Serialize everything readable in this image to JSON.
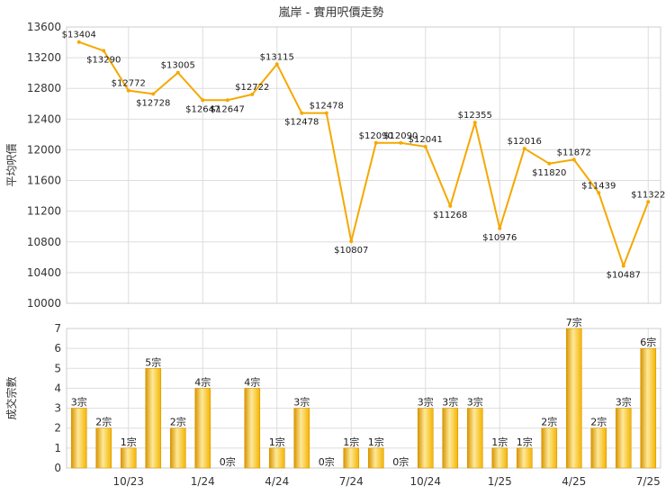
{
  "chart_data": [
    {
      "type": "line",
      "title": "嵐岸 - 實用呎價走勢",
      "ylabel": "平均呎價",
      "ylim": [
        10000,
        13600
      ],
      "yticks": [
        10000,
        10400,
        10800,
        11200,
        11600,
        12000,
        12400,
        12800,
        13200,
        13600
      ],
      "grid": true,
      "color": "#f5a800",
      "series": [
        {
          "values": [
            13404,
            13290,
            12772,
            12728,
            13005,
            12647,
            12647,
            12722,
            13115,
            12478,
            12478,
            10807,
            12090,
            12090,
            12041,
            11268,
            12355,
            10976,
            12016,
            11820,
            11872,
            11439,
            10487,
            11322
          ],
          "labels": [
            "$13404",
            "$13290",
            "$12772",
            "$12728",
            "$13005",
            "$12647",
            "$12647",
            "$12722",
            "$13115",
            "$12478",
            "$12478",
            "$10807",
            "$12090",
            "$12090",
            "$12041",
            "$11268",
            "$12355",
            "$10976",
            "$12016",
            "$11820",
            "$11872",
            "$11439",
            "$10487",
            "$11322"
          ]
        }
      ]
    },
    {
      "type": "bar",
      "ylabel": "成交宗數",
      "ylim": [
        0,
        7
      ],
      "yticks": [
        0,
        1,
        2,
        3,
        4,
        5,
        6,
        7
      ],
      "grid": true,
      "x_tick_labels": [
        {
          "index": 2,
          "label": "10/23"
        },
        {
          "index": 5,
          "label": "1/24"
        },
        {
          "index": 8,
          "label": "4/24"
        },
        {
          "index": 11,
          "label": "7/24"
        },
        {
          "index": 14,
          "label": "10/24"
        },
        {
          "index": 17,
          "label": "1/25"
        },
        {
          "index": 20,
          "label": "4/25"
        },
        {
          "index": 23,
          "label": "7/25"
        }
      ],
      "series": [
        {
          "values": [
            3,
            2,
            1,
            5,
            2,
            4,
            0,
            4,
            1,
            3,
            0,
            1,
            1,
            0,
            3,
            3,
            3,
            1,
            1,
            2,
            7,
            2,
            3,
            6
          ],
          "labels": [
            "3宗",
            "2宗",
            "1宗",
            "5宗",
            "2宗",
            "4宗",
            "0宗",
            "4宗",
            "1宗",
            "3宗",
            "0宗",
            "1宗",
            "1宗",
            "0宗",
            "3宗",
            "3宗",
            "3宗",
            "1宗",
            "1宗",
            "2宗",
            "7宗",
            "2宗",
            "3宗",
            "6宗"
          ]
        }
      ],
      "colors": {
        "bar_fill": "#f5b400",
        "bar_highlight": "#fde99a",
        "bar_edge": "#d99400"
      }
    }
  ]
}
